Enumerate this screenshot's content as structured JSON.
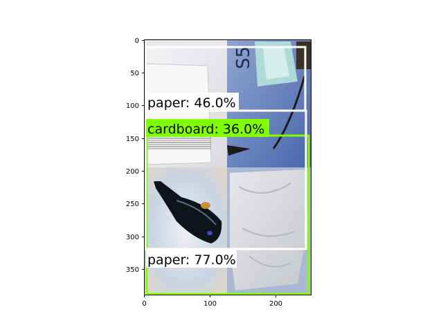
{
  "figure": {
    "x_ticks": [
      "0",
      "100",
      "200"
    ],
    "y_ticks": [
      "0",
      "50",
      "100",
      "150",
      "200",
      "250",
      "300",
      "350"
    ]
  },
  "image_tiles": [
    {
      "name": "white-paper-stack",
      "description_icon": "paper-photo"
    },
    {
      "name": "blue-plastic-bag",
      "description_icon": "plastic-photo"
    },
    {
      "name": "dark-glass-bottle",
      "description_icon": "bottle-photo"
    },
    {
      "name": "white-crumpled-paper",
      "description_icon": "paper-photo"
    }
  ],
  "detections": [
    {
      "label": "paper: 46.0%",
      "class": "paper",
      "score": 46.0,
      "color": "#ffffff"
    },
    {
      "label": "cardboard: 36.0%",
      "class": "cardboard",
      "score": 36.0,
      "color": "#7fff00"
    },
    {
      "label": "paper: 77.0%",
      "class": "paper",
      "score": 77.0,
      "color": "#ffffff"
    }
  ],
  "colors": {
    "paper_box": "#ffffff",
    "cardboard_box": "#7fff00",
    "label_bg_paper": "#ffffff",
    "label_bg_cardboard": "#7fff00"
  }
}
